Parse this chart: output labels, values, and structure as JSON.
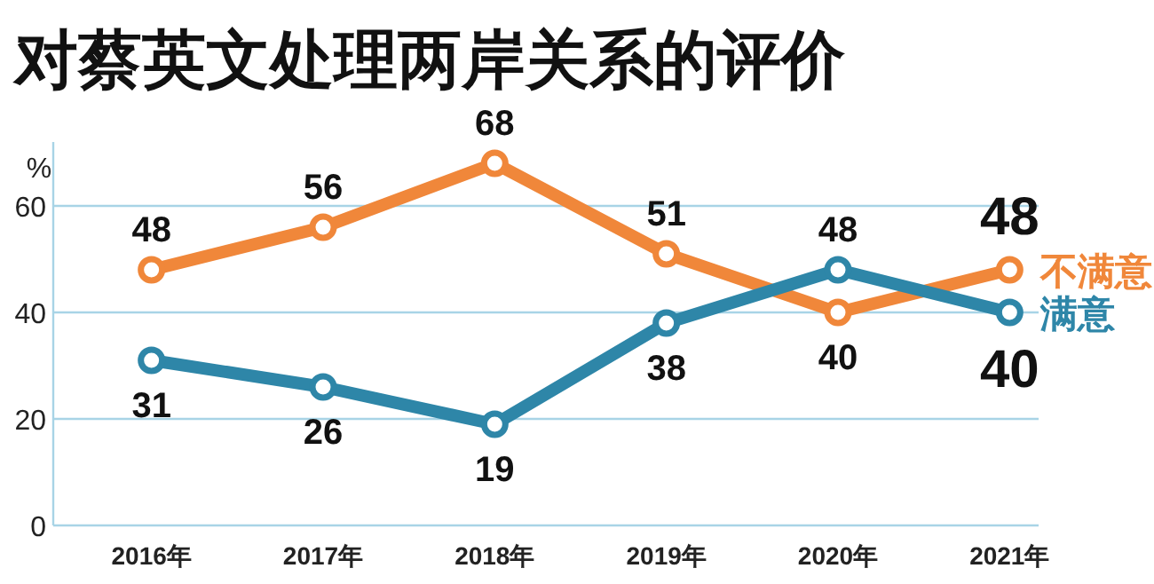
{
  "chart_data": {
    "type": "line",
    "title": "对蔡英文处理两岸关系的评价",
    "ylabel": "%",
    "categories": [
      "2016年",
      "2017年",
      "2018年",
      "2019年",
      "2020年",
      "2021年"
    ],
    "series": [
      {
        "name": "不满意",
        "color": "#f0873a",
        "values": [
          48,
          56,
          68,
          51,
          40,
          48
        ]
      },
      {
        "name": "满意",
        "color": "#2e86a8",
        "values": [
          31,
          26,
          19,
          38,
          48,
          40
        ]
      }
    ],
    "ylim": [
      0,
      72
    ],
    "yticks": [
      0,
      20,
      40,
      60
    ],
    "grid": "y",
    "data_labels": true,
    "legend": "right",
    "marker": "circle",
    "line_style": "solid"
  }
}
